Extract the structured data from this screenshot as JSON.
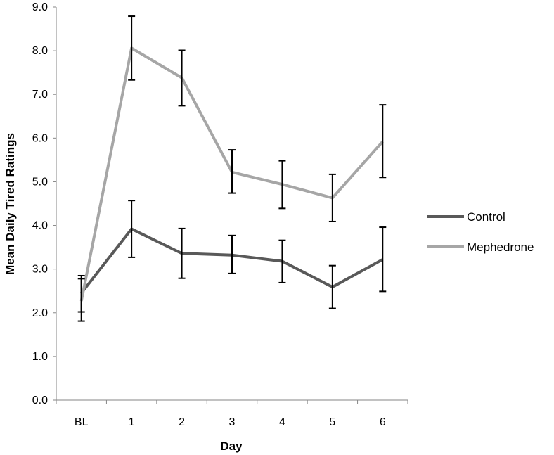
{
  "chart_data": {
    "type": "line",
    "title": "",
    "xlabel": "Day",
    "ylabel": "Mean Daily Tired Ratings",
    "categories": [
      "BL",
      "1",
      "2",
      "3",
      "4",
      "5",
      "6"
    ],
    "ylim": [
      0,
      9
    ],
    "yticks": [
      "0.0",
      "1.0",
      "2.0",
      "3.0",
      "4.0",
      "5.0",
      "6.0",
      "7.0",
      "8.0",
      "9.0"
    ],
    "grid": false,
    "legend_position": "right",
    "series": [
      {
        "name": "Control",
        "color": "#595959",
        "values": [
          2.45,
          3.92,
          3.36,
          3.32,
          3.18,
          2.59,
          3.22
        ],
        "error_low": [
          2.02,
          3.27,
          2.79,
          2.9,
          2.69,
          2.1,
          2.49
        ],
        "error_high": [
          2.85,
          4.57,
          3.93,
          3.77,
          3.66,
          3.08,
          3.96
        ]
      },
      {
        "name": "Mephedrone",
        "color": "#a6a6a6",
        "values": [
          2.27,
          8.06,
          7.38,
          5.22,
          4.94,
          4.63,
          5.92
        ],
        "error_low": [
          1.81,
          7.33,
          6.74,
          4.74,
          4.39,
          4.09,
          5.1
        ],
        "error_high": [
          2.78,
          8.79,
          8.01,
          5.73,
          5.48,
          5.17,
          6.76
        ]
      }
    ]
  }
}
